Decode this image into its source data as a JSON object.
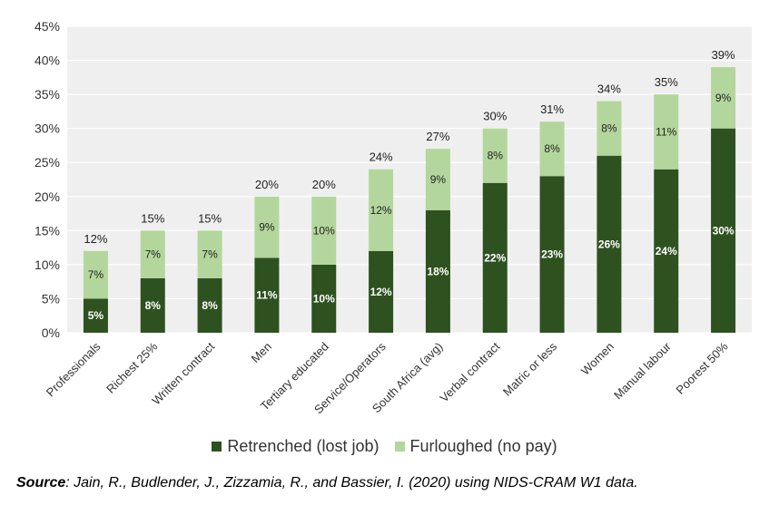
{
  "chart_data": {
    "type": "bar",
    "stacked": true,
    "categories": [
      "Professionals",
      "Richest 25%",
      "Written contract",
      "Men",
      "Tertiary educated",
      "Service/Operators",
      "South Africa (avg)",
      "Verbal contract",
      "Matric or less",
      "Women",
      "Manual labour",
      "Poorest 50%"
    ],
    "series": [
      {
        "name": "Retrenched (lost job)",
        "color": "#2e5120",
        "values": [
          5,
          8,
          8,
          11,
          10,
          12,
          18,
          22,
          23,
          26,
          24,
          30
        ],
        "labels": [
          "5%",
          "8%",
          "8%",
          "11%",
          "10%",
          "12%",
          "18%",
          "22%",
          "23%",
          "26%",
          "24%",
          "30%"
        ]
      },
      {
        "name": "Furloughed (no pay)",
        "color": "#b3d69c",
        "values": [
          7,
          7,
          7,
          9,
          10,
          12,
          9,
          8,
          8,
          8,
          11,
          9
        ],
        "labels": [
          "7%",
          "7%",
          "7%",
          "9%",
          "10%",
          "12%",
          "9%",
          "8%",
          "8%",
          "8%",
          "11%",
          "9%"
        ]
      }
    ],
    "totals": [
      12,
      15,
      15,
      20,
      20,
      24,
      27,
      30,
      31,
      34,
      35,
      39
    ],
    "total_labels": [
      "12%",
      "15%",
      "15%",
      "20%",
      "20%",
      "24%",
      "27%",
      "30%",
      "31%",
      "34%",
      "35%",
      "39%"
    ],
    "ylim": [
      0,
      45
    ],
    "yticks": [
      0,
      5,
      10,
      15,
      20,
      25,
      30,
      35,
      40,
      45
    ],
    "ytick_labels": [
      "0%",
      "5%",
      "10%",
      "15%",
      "20%",
      "25%",
      "30%",
      "35%",
      "40%",
      "45%"
    ],
    "plot_background": "#efefef",
    "legend_position": "bottom",
    "title": "",
    "xlabel": "",
    "ylabel": ""
  },
  "source": {
    "label": "Source",
    "text": ": Jain, R., Budlender, J., Zizzamia, R., and Bassier, I. (2020) using NIDS-CRAM W1 data."
  }
}
